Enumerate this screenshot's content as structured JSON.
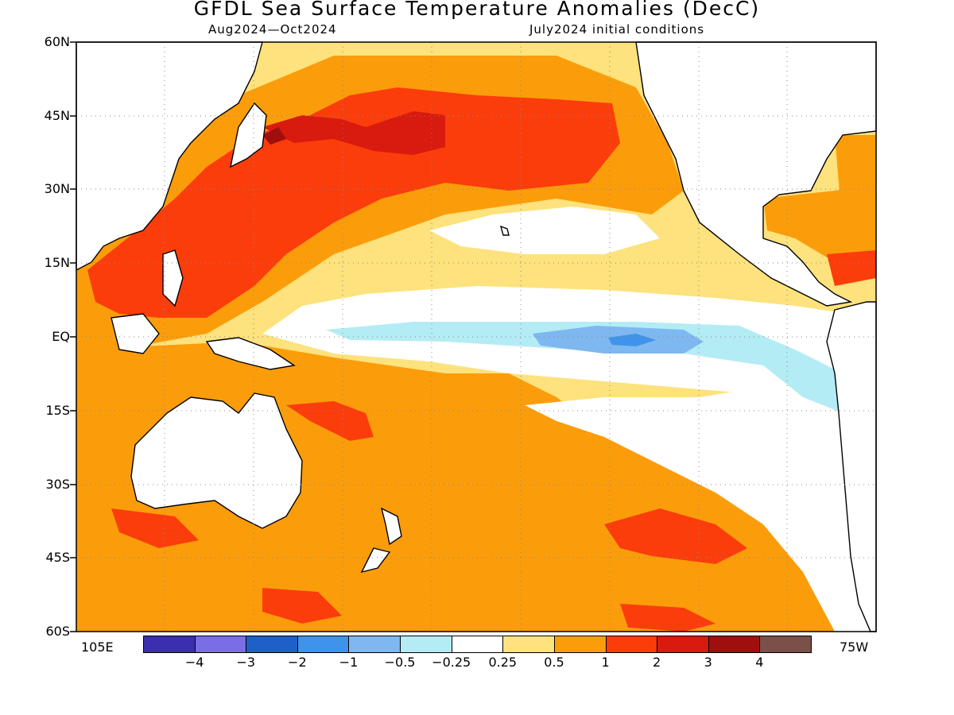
{
  "title": "GFDL Sea Surface Temperature Anomalies (DecC)",
  "subtitle_left": "Aug2024—Oct2024",
  "subtitle_right": "July2024 initial conditions",
  "lat_labels": [
    "60N",
    "45N",
    "30N",
    "15N",
    "EQ",
    "15S",
    "30S",
    "45S",
    "60S"
  ],
  "lon_labels": {
    "west": "105E",
    "east": "75W"
  },
  "extent": {
    "lon_min": 105,
    "lon_max": 285,
    "lat_min": -60,
    "lat_max": 60
  },
  "colorbar": {
    "colors": [
      "#3b2fb0",
      "#7a6de6",
      "#1f5fc8",
      "#3f93ea",
      "#7fb8f0",
      "#b4ecf5",
      "#ffffff",
      "#fde27d",
      "#fb9d0a",
      "#fb3d0b",
      "#d81a0f",
      "#a00e0e",
      "#7a5048"
    ],
    "labels": [
      "−4",
      "−3",
      "−2",
      "−1",
      "−0.5",
      "−0.25",
      "0.25",
      "0.5",
      "1",
      "2",
      "3",
      "4"
    ]
  }
}
